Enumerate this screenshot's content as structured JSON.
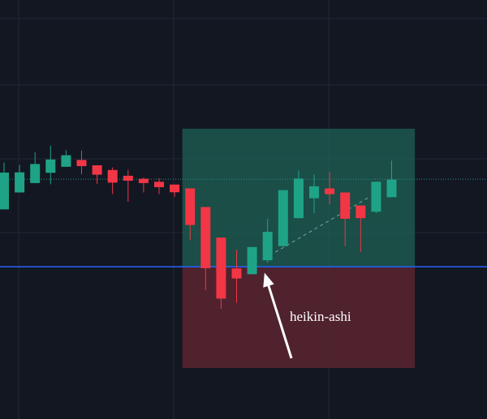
{
  "chart_data": {
    "type": "candlestick",
    "style": "heikin-ashi",
    "ylim": [
      0,
      100
    ],
    "grid": true,
    "colors": {
      "background": "#131722",
      "grid": "#232736",
      "up": "#1fa387",
      "down": "#f23645",
      "profit_zone": "#1f6b5c",
      "loss_zone": "#5a2430",
      "price_line": "#2962ff",
      "annotation": "#ffffff"
    },
    "candles": [
      {
        "open": 47.6,
        "close": 64.8,
        "high": 69.5,
        "low": 47.6,
        "dir": "up"
      },
      {
        "open": 55.5,
        "close": 64.9,
        "high": 68.4,
        "low": 55.5,
        "dir": "up"
      },
      {
        "open": 59.9,
        "close": 68.8,
        "high": 74.3,
        "low": 59.9,
        "dir": "up"
      },
      {
        "open": 64.7,
        "close": 70.9,
        "high": 77.4,
        "low": 59.3,
        "dir": "up"
      },
      {
        "open": 67.5,
        "close": 72.9,
        "high": 75.3,
        "low": 67.5,
        "dir": "up"
      },
      {
        "open": 70.7,
        "close": 67.8,
        "high": 75.1,
        "low": 63.9,
        "dir": "down"
      },
      {
        "open": 68.2,
        "close": 63.8,
        "high": 68.2,
        "low": 59.5,
        "dir": "down"
      },
      {
        "open": 66.0,
        "close": 60.1,
        "high": 67.2,
        "low": 54.7,
        "dir": "down"
      },
      {
        "open": 63.3,
        "close": 61.0,
        "high": 66.0,
        "low": 51.1,
        "dir": "down"
      },
      {
        "open": 61.9,
        "close": 59.9,
        "high": 62.4,
        "low": 55.5,
        "dir": "down"
      },
      {
        "open": 60.5,
        "close": 58.0,
        "high": 62.1,
        "low": 54.7,
        "dir": "down"
      },
      {
        "open": 59.2,
        "close": 55.6,
        "high": 59.2,
        "low": 53.5,
        "dir": "down"
      },
      {
        "open": 57.4,
        "close": 40.3,
        "high": 57.4,
        "low": 33.1,
        "dir": "down"
      },
      {
        "open": 48.7,
        "close": 20.1,
        "high": 48.7,
        "low": 9.8,
        "dir": "down"
      },
      {
        "open": 34.4,
        "close": 5.9,
        "high": 34.4,
        "low": 1.2,
        "dir": "down"
      },
      {
        "open": 20.0,
        "close": 15.3,
        "high": 28.7,
        "low": 4.0,
        "dir": "down"
      },
      {
        "open": 17.3,
        "close": 30.0,
        "high": 30.0,
        "low": 17.3,
        "dir": "up"
      },
      {
        "open": 23.8,
        "close": 37.1,
        "high": 43.2,
        "low": 22.6,
        "dir": "up"
      },
      {
        "open": 30.4,
        "close": 56.6,
        "high": 56.6,
        "low": 30.4,
        "dir": "up"
      },
      {
        "open": 43.5,
        "close": 62.0,
        "high": 65.8,
        "low": 43.5,
        "dir": "up"
      },
      {
        "open": 52.8,
        "close": 58.4,
        "high": 63.9,
        "low": 45.8,
        "dir": "up"
      },
      {
        "open": 57.4,
        "close": 54.7,
        "high": 65.2,
        "low": 49.9,
        "dir": "down"
      },
      {
        "open": 55.5,
        "close": 43.2,
        "high": 55.5,
        "low": 30.4,
        "dir": "down"
      },
      {
        "open": 49.4,
        "close": 43.5,
        "high": 49.4,
        "low": 27.6,
        "dir": "down"
      },
      {
        "open": 46.5,
        "close": 60.5,
        "high": 60.5,
        "low": 45.8,
        "dir": "up"
      },
      {
        "open": 53.3,
        "close": 61.5,
        "high": 70.4,
        "low": 53.3,
        "dir": "up"
      }
    ],
    "trade_zone": {
      "entry": 20.4,
      "target": 85.3,
      "stop": 0.0,
      "start_candle": 11.5,
      "end_candle": 26.5
    },
    "reference_levels": {
      "horizontal_line": 20.4,
      "dotted_line": 61.7
    },
    "trend_line": {
      "from": {
        "candle": 17.5,
        "value": 27.6
      },
      "to": {
        "candle": 23.5,
        "value": 53.1
      }
    },
    "annotation": {
      "text": "heikin-ashi",
      "arrow_target_candle": 16.8,
      "arrow_target_value": 18.0
    }
  }
}
